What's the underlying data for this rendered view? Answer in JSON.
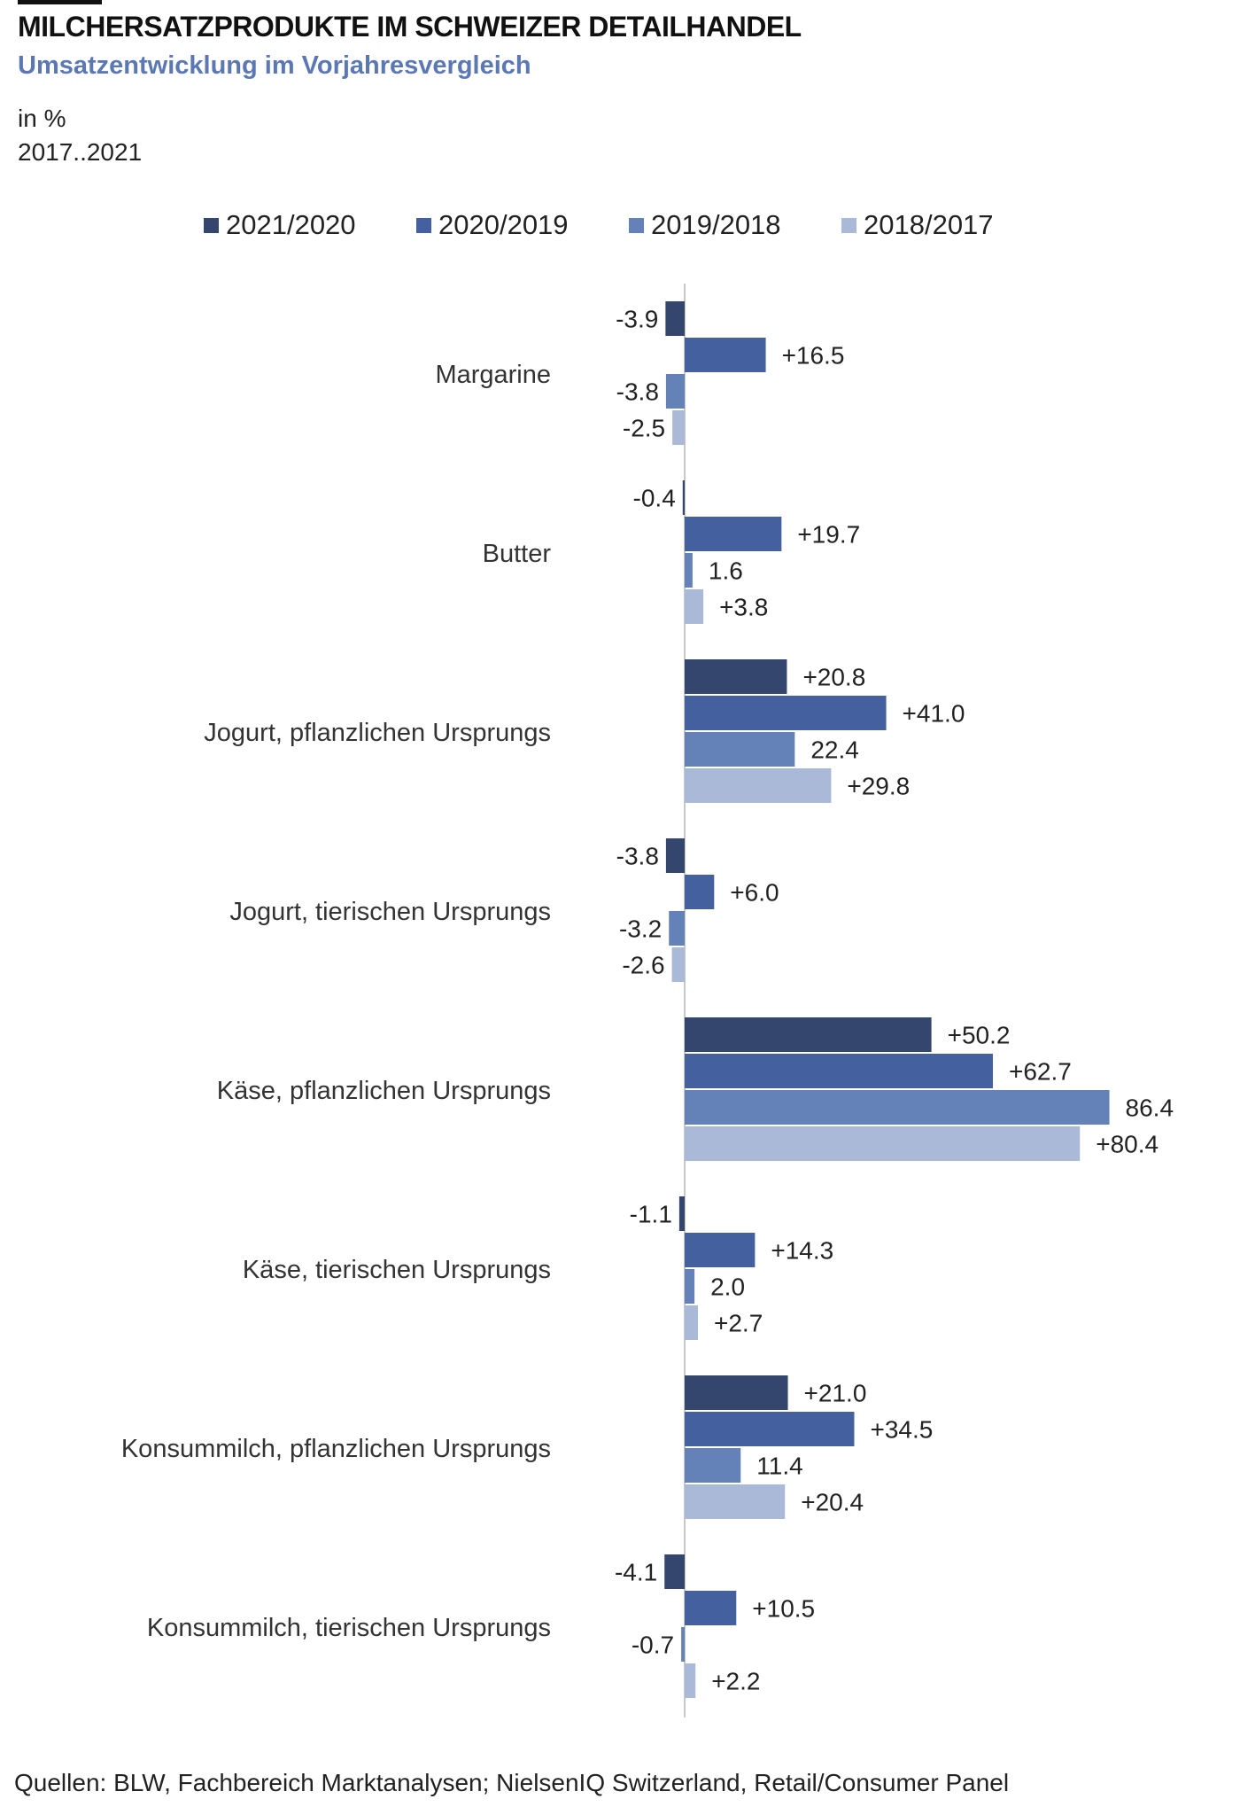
{
  "header": {
    "title": "MILCHERSATZPRODUKTE IM SCHWEIZER DETAILHANDEL",
    "subtitle": "Umsatzentwicklung  im Vorjahresvergleich",
    "unit": "in %",
    "period": "2017..2021"
  },
  "footer": {
    "source": "Quellen: BLW, Fachbereich Marktanalysen; NielsenIQ Switzerland, Retail/Consumer Panel"
  },
  "chart_data": {
    "type": "bar",
    "orientation": "horizontal",
    "title": "MILCHERSATZPRODUKTE IM SCHWEIZER DETAILHANDEL",
    "subtitle": "Umsatzentwicklung  im Vorjahresvergleich",
    "legend_position": "top",
    "grid": false,
    "xlim": [
      -5,
      95
    ],
    "categories": [
      "Margarine",
      "Butter",
      "Jogurt, pflanzlichen Ursprungs",
      "Jogurt, tierischen Ursprungs",
      "Käse, pflanzlichen Ursprungs",
      "Käse, tierischen Ursprungs",
      "Konsummilch, pflanzlichen Ursprungs",
      "Konsummilch, tierischen Ursprungs"
    ],
    "series": [
      {
        "name": "2021/2020",
        "color": "#34466e",
        "values": [
          -3.9,
          -0.4,
          20.8,
          -3.8,
          50.2,
          -1.1,
          21.0,
          -4.1
        ],
        "labels": [
          "-3.9",
          "-0.4",
          "+20.8",
          "-3.8",
          "+50.2",
          "-1.1",
          "+21.0",
          "-4.1"
        ]
      },
      {
        "name": "2020/2019",
        "color": "#44609e",
        "values": [
          16.5,
          19.7,
          41.0,
          6.0,
          62.7,
          14.3,
          34.5,
          10.5
        ],
        "labels": [
          "+16.5",
          "+19.7",
          "+41.0",
          "+6.0",
          "+62.7",
          "+14.3",
          "+34.5",
          "+10.5"
        ]
      },
      {
        "name": "2019/2018",
        "color": "#6481b8",
        "values": [
          -3.8,
          1.6,
          22.4,
          -3.2,
          86.4,
          2.0,
          11.4,
          -0.7
        ],
        "labels": [
          "-3.8",
          "1.6",
          "22.4",
          "-3.2",
          "86.4",
          "2.0",
          "11.4",
          "-0.7"
        ]
      },
      {
        "name": "2018/2017",
        "color": "#a9b9d7",
        "values": [
          -2.5,
          3.8,
          29.8,
          -2.6,
          80.4,
          2.7,
          20.4,
          2.2
        ],
        "labels": [
          "-2.5",
          "+3.8",
          "+29.8",
          "-2.6",
          "+80.4",
          "+2.7",
          "+20.4",
          "+2.2"
        ]
      }
    ]
  }
}
